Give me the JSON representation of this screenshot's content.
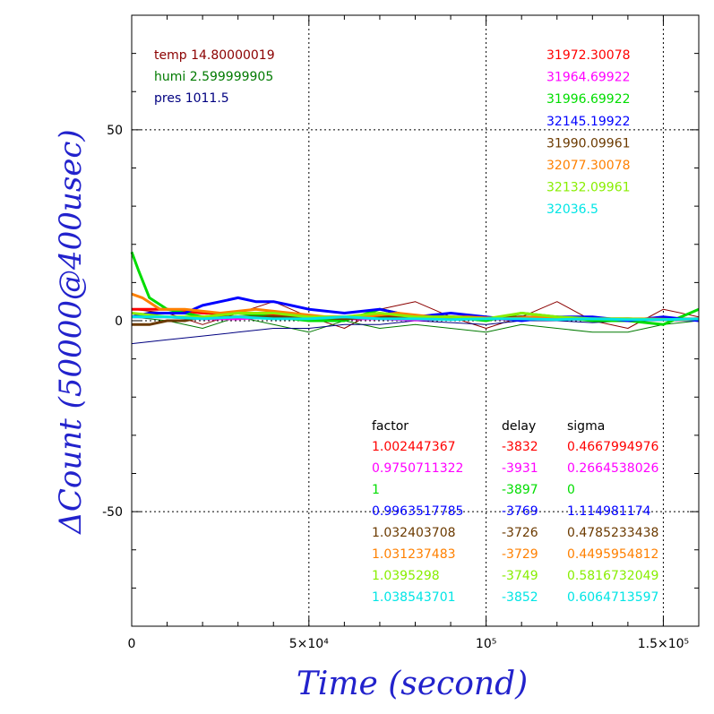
{
  "chart_data": {
    "type": "line",
    "xlabel": "Time (second)",
    "ylabel": "ΔCount (50000@400usec)",
    "xlim": [
      0,
      160000
    ],
    "ylim": [
      -80,
      80
    ],
    "x_ticks": [
      {
        "value": 0,
        "label": "0"
      },
      {
        "value": 50000,
        "label": "5×10⁴"
      },
      {
        "value": 100000,
        "label": "10⁵"
      },
      {
        "value": 150000,
        "label": "1.5×10⁵"
      }
    ],
    "y_ticks": [
      {
        "value": -50,
        "label": "-50"
      },
      {
        "value": 0,
        "label": "0"
      },
      {
        "value": 50,
        "label": "50"
      }
    ],
    "grid": "dotted",
    "env_info": [
      {
        "text": "temp 14.80000019",
        "color": "#8b0000"
      },
      {
        "text": "humi 2.599999905",
        "color": "#007a00"
      },
      {
        "text": "pres 1011.5",
        "color": "#000080"
      }
    ],
    "legend_header": {
      "factor": "factor",
      "delay": "delay",
      "sigma": "sigma"
    },
    "series": [
      {
        "id": "31972.30078",
        "color": "#ff0000",
        "factor": "1.002447367",
        "delay": "-3832",
        "sigma": "0.4667994976",
        "x": [
          0,
          10000,
          20000,
          30000,
          40000,
          50000,
          60000,
          70000,
          80000,
          90000,
          100000,
          110000,
          120000,
          130000,
          140000,
          150000,
          160000
        ],
        "y": [
          3,
          3,
          2,
          2,
          1.5,
          1,
          1,
          1.5,
          1,
          1,
          0.5,
          1,
          0.5,
          0.5,
          0.3,
          0.5,
          0.5
        ]
      },
      {
        "id": "31964.69922",
        "color": "#ff00ff",
        "factor": "0.9750711322",
        "delay": "-3931",
        "sigma": "0.2664538026",
        "x": [
          0,
          10000,
          20000,
          30000,
          40000,
          50000,
          60000,
          70000,
          80000,
          90000,
          100000,
          110000,
          120000,
          130000,
          140000,
          150000,
          160000
        ],
        "y": [
          1,
          1,
          0.5,
          0.5,
          1,
          0.5,
          0.5,
          0.5,
          0.2,
          0.5,
          0.5,
          0.3,
          0.5,
          0.3,
          0.5,
          0.3,
          0.5
        ]
      },
      {
        "id": "31996.69922",
        "color": "#00dd00",
        "factor": "1",
        "delay": "-3897",
        "sigma": "0",
        "x": [
          0,
          2000,
          5000,
          10000,
          15000,
          20000,
          30000,
          40000,
          50000,
          60000,
          70000,
          80000,
          90000,
          100000,
          110000,
          120000,
          130000,
          140000,
          150000,
          160000
        ],
        "y": [
          18,
          13,
          6,
          3,
          2,
          1,
          2,
          1,
          0,
          0,
          3,
          1,
          1,
          0,
          2,
          1,
          0,
          0,
          -1,
          3
        ]
      },
      {
        "id": "32145.19922",
        "color": "#0000ff",
        "factor": "0.9963517785",
        "delay": "-3769",
        "sigma": "1.114981174",
        "x": [
          0,
          5000,
          10000,
          15000,
          20000,
          25000,
          30000,
          35000,
          40000,
          45000,
          50000,
          60000,
          70000,
          80000,
          90000,
          100000,
          110000,
          120000,
          130000,
          140000,
          150000,
          160000
        ],
        "y": [
          1,
          2,
          2,
          2,
          4,
          5,
          6,
          5,
          5,
          4,
          3,
          2,
          3,
          1,
          2,
          1,
          0,
          1,
          1,
          0,
          1,
          0
        ]
      },
      {
        "id": "31990.09961",
        "color": "#6b3a00",
        "factor": "1.032403708",
        "delay": "-3726",
        "sigma": "0.4785233438",
        "x": [
          0,
          5000,
          10000,
          15000,
          20000,
          30000,
          40000,
          50000,
          60000,
          70000,
          80000,
          90000,
          100000,
          110000,
          120000,
          130000,
          140000,
          150000,
          160000
        ],
        "y": [
          -1,
          -1,
          0,
          0,
          1,
          1,
          1,
          1,
          0.5,
          1,
          0.5,
          1,
          0.5,
          1,
          0.5,
          0.5,
          0.5,
          0.3,
          0.5
        ]
      },
      {
        "id": "32077.30078",
        "color": "#ff8000",
        "factor": "1.031237483",
        "delay": "-3729",
        "sigma": "0.4495954812",
        "x": [
          0,
          3000,
          8000,
          15000,
          25000,
          35000,
          45000,
          55000,
          65000,
          75000,
          85000,
          95000,
          105000,
          115000,
          125000,
          135000,
          145000,
          155000,
          160000
        ],
        "y": [
          7,
          6,
          3,
          3,
          2,
          3,
          2,
          1,
          1,
          2,
          1,
          1,
          0.5,
          1,
          0.5,
          0.5,
          0.5,
          0.3,
          0.5
        ]
      },
      {
        "id": "32132.09961",
        "color": "#88ee00",
        "factor": "1.0395298",
        "delay": "-3749",
        "sigma": "0.5816732049",
        "x": [
          0,
          10000,
          20000,
          30000,
          40000,
          50000,
          60000,
          70000,
          80000,
          90000,
          100000,
          110000,
          120000,
          130000,
          140000,
          150000,
          160000
        ],
        "y": [
          2,
          1,
          1,
          2,
          2,
          1,
          1,
          2,
          1,
          1,
          0.5,
          2,
          1,
          0.5,
          0.5,
          0.3,
          0.5
        ]
      },
      {
        "id": "32036.5",
        "color": "#00e5e5",
        "factor": "1.038543701",
        "delay": "-3852",
        "sigma": "0.6064713597",
        "x": [
          0,
          10000,
          20000,
          30000,
          40000,
          50000,
          60000,
          70000,
          80000,
          90000,
          100000,
          110000,
          120000,
          130000,
          140000,
          150000,
          160000
        ],
        "y": [
          1,
          1,
          0.5,
          1,
          0.5,
          0.5,
          1,
          0.5,
          0.5,
          0.3,
          0.5,
          0.5,
          0.3,
          0.5,
          0.3,
          0.3,
          0.5
        ]
      },
      {
        "id": "temp",
        "color": "#8b0000",
        "role": "env",
        "x": [
          0,
          10000,
          20000,
          30000,
          40000,
          50000,
          60000,
          70000,
          80000,
          90000,
          100000,
          110000,
          120000,
          130000,
          140000,
          150000,
          160000
        ],
        "y": [
          3,
          2,
          -1,
          2,
          5,
          1,
          -2,
          3,
          5,
          1,
          -2,
          1,
          5,
          0,
          -2,
          3,
          1
        ]
      },
      {
        "id": "humi",
        "color": "#007a00",
        "role": "env",
        "x": [
          0,
          10000,
          20000,
          30000,
          40000,
          50000,
          60000,
          70000,
          80000,
          90000,
          100000,
          110000,
          120000,
          130000,
          140000,
          150000,
          160000
        ],
        "y": [
          1,
          0,
          -2,
          1,
          -1,
          -3,
          0,
          -2,
          -1,
          -2,
          -3,
          -1,
          -2,
          -3,
          -3,
          -1,
          0
        ]
      },
      {
        "id": "pres",
        "color": "#000080",
        "role": "env",
        "x": [
          0,
          10000,
          20000,
          30000,
          40000,
          50000,
          60000,
          70000,
          80000,
          90000,
          100000,
          110000,
          120000,
          130000,
          140000,
          150000,
          160000
        ],
        "y": [
          -6,
          -5,
          -4,
          -3,
          -2,
          -2,
          -1,
          -1,
          0,
          -0.5,
          -1,
          0,
          0,
          -0.5,
          0,
          0,
          0
        ]
      }
    ]
  }
}
